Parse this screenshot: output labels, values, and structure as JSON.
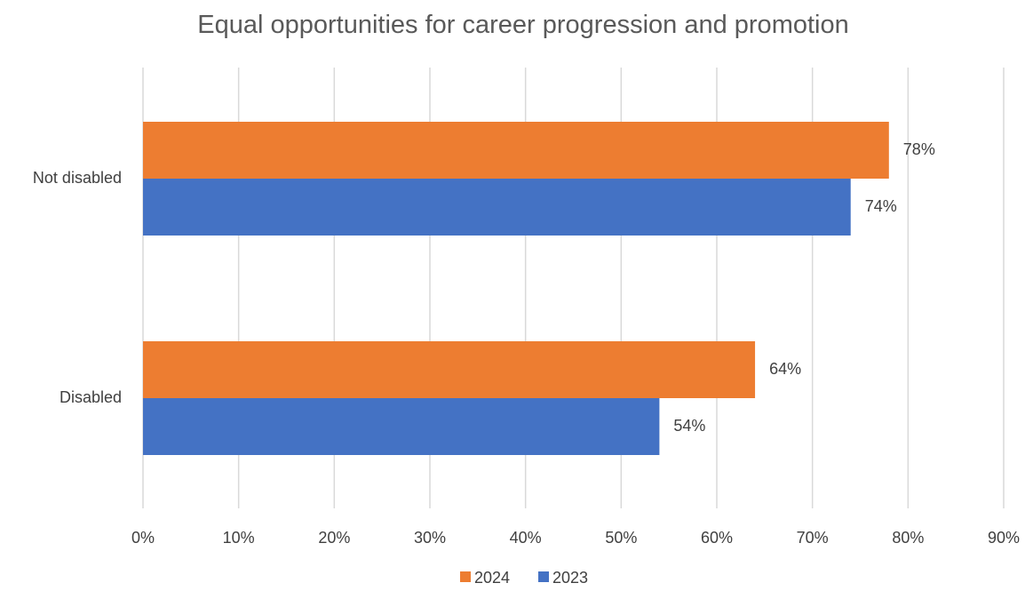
{
  "chart_data": {
    "type": "bar",
    "orientation": "horizontal",
    "title": "Equal opportunities for career progression and promotion",
    "categories": [
      "Not disabled",
      "Disabled"
    ],
    "series": [
      {
        "name": "2024",
        "values": [
          78,
          64
        ],
        "labels": [
          "78%",
          "64%"
        ],
        "color": "#ED7D31"
      },
      {
        "name": "2023",
        "values": [
          74,
          54
        ],
        "labels": [
          "74%",
          "54%"
        ],
        "color": "#4472C4"
      }
    ],
    "xlim": [
      0,
      90
    ],
    "x_ticks": [
      0,
      10,
      20,
      30,
      40,
      50,
      60,
      70,
      80,
      90
    ],
    "x_tick_labels": [
      "0%",
      "10%",
      "20%",
      "30%",
      "40%",
      "50%",
      "60%",
      "70%",
      "80%",
      "90%"
    ],
    "xlabel": "",
    "ylabel": "",
    "grid": true,
    "legend_position": "bottom",
    "colors": {
      "gridline": "#D9D9D9",
      "axis_text": "#404040",
      "title_text": "#595959"
    }
  }
}
